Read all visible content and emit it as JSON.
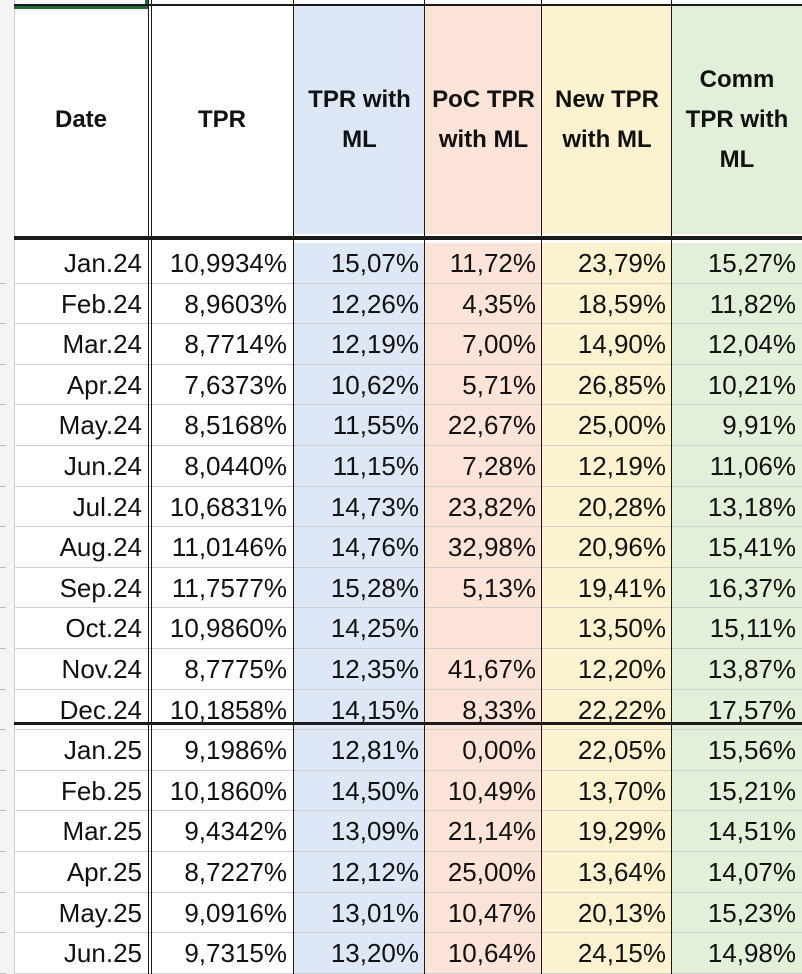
{
  "headers": {
    "date": "Date",
    "tpr": "TPR",
    "tpr_ml": "TPR with\nML",
    "poc_tpr_ml": "PoC TPR\nwith ML",
    "new_tpr_ml": "New TPR\nwith ML",
    "comm_tpr_ml": "Comm\nTPR with\nML"
  },
  "colors": {
    "tpr_ml_bg": "#dde7f5",
    "poc_bg": "#fbe3d8",
    "new_bg": "#fdf2cf",
    "comm_bg": "#e2efd9",
    "selection": "#1d6b3a"
  },
  "rows": [
    {
      "date": "Jan.24",
      "tpr": "10,9934%",
      "tpr_ml": "15,07%",
      "poc": "11,72%",
      "new": "23,79%",
      "comm": "15,27%"
    },
    {
      "date": "Feb.24",
      "tpr": "8,9603%",
      "tpr_ml": "12,26%",
      "poc": "4,35%",
      "new": "18,59%",
      "comm": "11,82%"
    },
    {
      "date": "Mar.24",
      "tpr": "8,7714%",
      "tpr_ml": "12,19%",
      "poc": "7,00%",
      "new": "14,90%",
      "comm": "12,04%"
    },
    {
      "date": "Apr.24",
      "tpr": "7,6373%",
      "tpr_ml": "10,62%",
      "poc": "5,71%",
      "new": "26,85%",
      "comm": "10,21%"
    },
    {
      "date": "May.24",
      "tpr": "8,5168%",
      "tpr_ml": "11,55%",
      "poc": "22,67%",
      "new": "25,00%",
      "comm": "9,91%"
    },
    {
      "date": "Jun.24",
      "tpr": "8,0440%",
      "tpr_ml": "11,15%",
      "poc": "7,28%",
      "new": "12,19%",
      "comm": "11,06%"
    },
    {
      "date": "Jul.24",
      "tpr": "10,6831%",
      "tpr_ml": "14,73%",
      "poc": "23,82%",
      "new": "20,28%",
      "comm": "13,18%"
    },
    {
      "date": "Aug.24",
      "tpr": "11,0146%",
      "tpr_ml": "14,76%",
      "poc": "32,98%",
      "new": "20,96%",
      "comm": "15,41%"
    },
    {
      "date": "Sep.24",
      "tpr": "11,7577%",
      "tpr_ml": "15,28%",
      "poc": "5,13%",
      "new": "19,41%",
      "comm": "16,37%"
    },
    {
      "date": "Oct.24",
      "tpr": "10,9860%",
      "tpr_ml": "14,25%",
      "poc": "",
      "new": "13,50%",
      "comm": "15,11%"
    },
    {
      "date": "Nov.24",
      "tpr": "8,7775%",
      "tpr_ml": "12,35%",
      "poc": "41,67%",
      "new": "12,20%",
      "comm": "13,87%"
    },
    {
      "date": "Dec.24",
      "tpr": "10,1858%",
      "tpr_ml": "14,15%",
      "poc": "8,33%",
      "new": "22,22%",
      "comm": "17,57%"
    },
    {
      "date": "Jan.25",
      "tpr": "9,1986%",
      "tpr_ml": "12,81%",
      "poc": "0,00%",
      "new": "22,05%",
      "comm": "15,56%"
    },
    {
      "date": "Feb.25",
      "tpr": "10,1860%",
      "tpr_ml": "14,50%",
      "poc": "10,49%",
      "new": "13,70%",
      "comm": "15,21%"
    },
    {
      "date": "Mar.25",
      "tpr": "9,4342%",
      "tpr_ml": "13,09%",
      "poc": "21,14%",
      "new": "19,29%",
      "comm": "14,51%"
    },
    {
      "date": "Apr.25",
      "tpr": "8,7227%",
      "tpr_ml": "12,12%",
      "poc": "25,00%",
      "new": "13,64%",
      "comm": "14,07%"
    },
    {
      "date": "May.25",
      "tpr": "9,0916%",
      "tpr_ml": "13,01%",
      "poc": "10,47%",
      "new": "20,13%",
      "comm": "15,23%"
    },
    {
      "date": "Jun.25",
      "tpr": "9,7315%",
      "tpr_ml": "13,20%",
      "poc": "10,64%",
      "new": "24,15%",
      "comm": "14,98%"
    }
  ]
}
